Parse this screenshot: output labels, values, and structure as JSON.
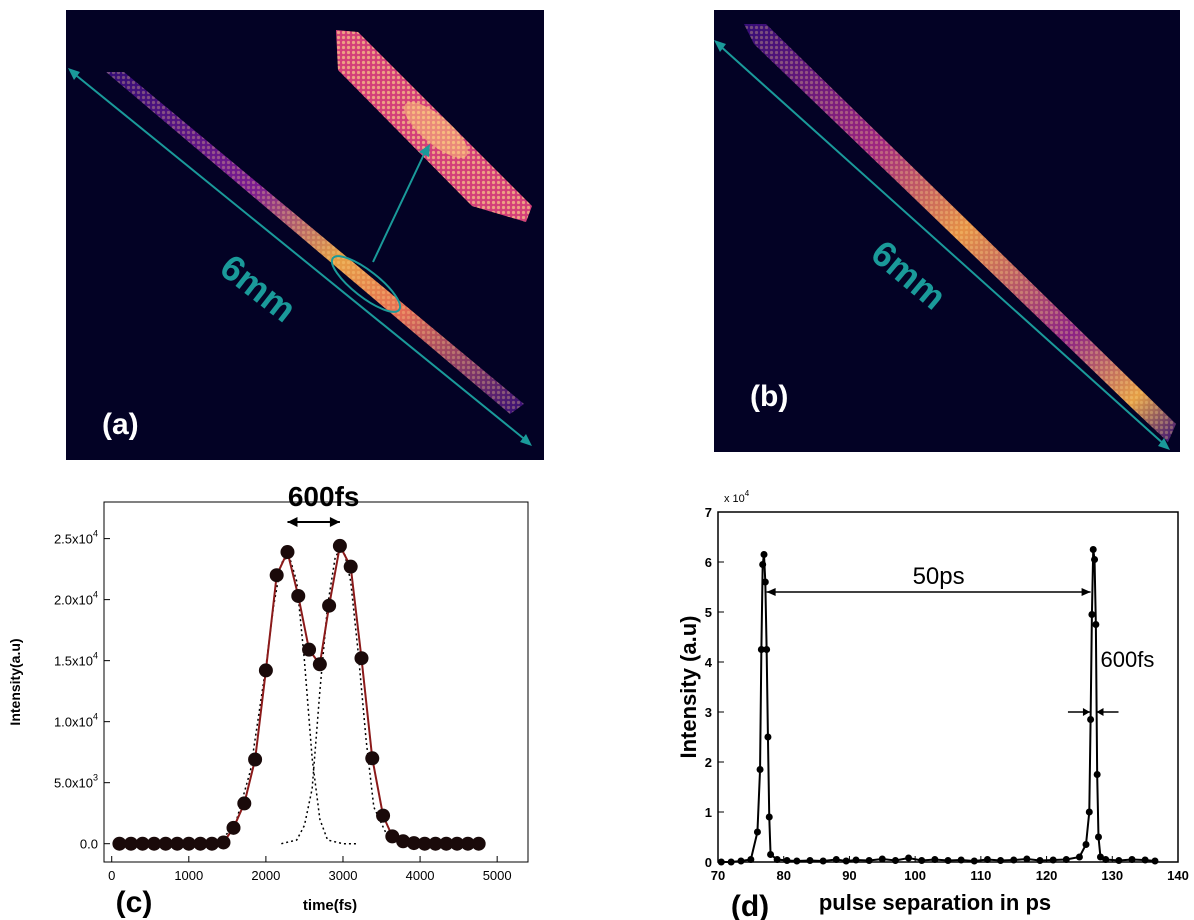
{
  "panels": {
    "a": {
      "label": "(a)",
      "scale_label": "6mm"
    },
    "b": {
      "label": "(b)",
      "scale_label": "6mm"
    }
  },
  "colors": {
    "background": "#030225",
    "arrow": "#1a9a9a",
    "beam_low": "#5b1aa8",
    "beam_mid": "#d23c8c",
    "beam_high": "#ffd24a"
  },
  "chart_data": [
    {
      "type": "line",
      "panel_label": "(c)",
      "title": "",
      "annotation": "600fs",
      "xlabel": "time(fs)",
      "ylabel": "Intensity(a.u)",
      "xlim": [
        -100,
        5400
      ],
      "ylim": [
        -1500,
        28000
      ],
      "xticks": [
        0,
        1000,
        2000,
        3000,
        4000,
        5000
      ],
      "xtick_labels": [
        "0",
        "1000",
        "2000",
        "3000",
        "4000",
        "5000"
      ],
      "yticks": [
        0,
        5000,
        10000,
        15000,
        20000,
        25000
      ],
      "ytick_labels": [
        "0.0",
        "5.0x10",
        "1.0x10",
        "1.5x10",
        "2.0x10",
        "2.5x10"
      ],
      "ytick_exponents": [
        "",
        "3",
        "4",
        "4",
        "4",
        "4"
      ],
      "grid": false,
      "series": [
        {
          "style": "markers-line",
          "x": [
            100,
            250,
            400,
            550,
            700,
            850,
            1000,
            1150,
            1300,
            1450,
            1580,
            1720,
            1860,
            2000,
            2140,
            2280,
            2420,
            2560,
            2700,
            2820,
            2960,
            3100,
            3240,
            3380,
            3520,
            3640,
            3780,
            3920,
            4060,
            4200,
            4340,
            4480,
            4620,
            4760
          ],
          "y": [
            0,
            0,
            0,
            0,
            0,
            0,
            0,
            0,
            0,
            100,
            1300,
            3300,
            6900,
            14200,
            22000,
            23900,
            20300,
            15900,
            14700,
            19500,
            24400,
            22700,
            15200,
            7000,
            2300,
            600,
            200,
            50,
            0,
            0,
            0,
            0,
            0,
            0
          ]
        },
        {
          "style": "dotted",
          "x": [
            1200,
            1400,
            1600,
            1800,
            2000,
            2100,
            2200,
            2300,
            2400,
            2500,
            2600,
            2700,
            2800,
            3000,
            3200
          ],
          "y": [
            0,
            200,
            1500,
            6000,
            14500,
            19500,
            23000,
            23600,
            21500,
            15000,
            7000,
            2000,
            300,
            0,
            0
          ]
        },
        {
          "style": "dotted",
          "x": [
            2200,
            2400,
            2500,
            2600,
            2700,
            2800,
            2900,
            3000,
            3100,
            3200,
            3300,
            3400,
            3600,
            3800,
            4000
          ],
          "y": [
            0,
            300,
            1500,
            4500,
            12500,
            19500,
            23500,
            24400,
            21500,
            15500,
            8500,
            3000,
            300,
            0,
            0
          ]
        }
      ]
    },
    {
      "type": "line",
      "panel_label": "(d)",
      "title": "",
      "annotations": [
        "50ps",
        "600fs"
      ],
      "xlabel": "pulse separation in ps",
      "ylabel": "Intensity (a.u)",
      "y_multiplier": "x 10",
      "y_multiplier_exponent": "4",
      "xlim": [
        70,
        140
      ],
      "ylim": [
        0,
        7
      ],
      "xticks": [
        70,
        80,
        90,
        100,
        110,
        120,
        130,
        140
      ],
      "xtick_labels": [
        "70",
        "80",
        "90",
        "100",
        "110",
        "120",
        "130",
        "140"
      ],
      "yticks": [
        0,
        1,
        2,
        3,
        4,
        5,
        6,
        7
      ],
      "ytick_labels": [
        "0",
        "1",
        "2",
        "3",
        "4",
        "5",
        "6",
        "7"
      ],
      "grid": false,
      "series": [
        {
          "style": "markers-line",
          "x": [
            70.5,
            72,
            73.5,
            75,
            76,
            76.4,
            76.6,
            76.8,
            77.0,
            77.2,
            77.4,
            77.6,
            77.8,
            78,
            79,
            80.5,
            82,
            84,
            86,
            88,
            89.5,
            91,
            93,
            95,
            97,
            99,
            101,
            103,
            105,
            107,
            109,
            111,
            113,
            115,
            117,
            119,
            121,
            123,
            125,
            126,
            126.5,
            126.7,
            126.9,
            127.1,
            127.3,
            127.5,
            127.7,
            127.9,
            128.2,
            129,
            131,
            133,
            135,
            136.5
          ],
          "y": [
            0,
            0,
            0.02,
            0.05,
            0.6,
            1.85,
            4.25,
            5.95,
            6.15,
            5.6,
            4.25,
            2.5,
            0.9,
            0.15,
            0.05,
            0.03,
            0.02,
            0.03,
            0.02,
            0.05,
            0.02,
            0.04,
            0.03,
            0.06,
            0.03,
            0.08,
            0.03,
            0.05,
            0.03,
            0.04,
            0.02,
            0.05,
            0.03,
            0.04,
            0.06,
            0.03,
            0.04,
            0.05,
            0.1,
            0.35,
            1.0,
            2.85,
            4.95,
            6.25,
            6.05,
            4.75,
            1.75,
            0.5,
            0.1,
            0.05,
            0.03,
            0.05,
            0.04,
            0.02
          ]
        }
      ]
    }
  ]
}
